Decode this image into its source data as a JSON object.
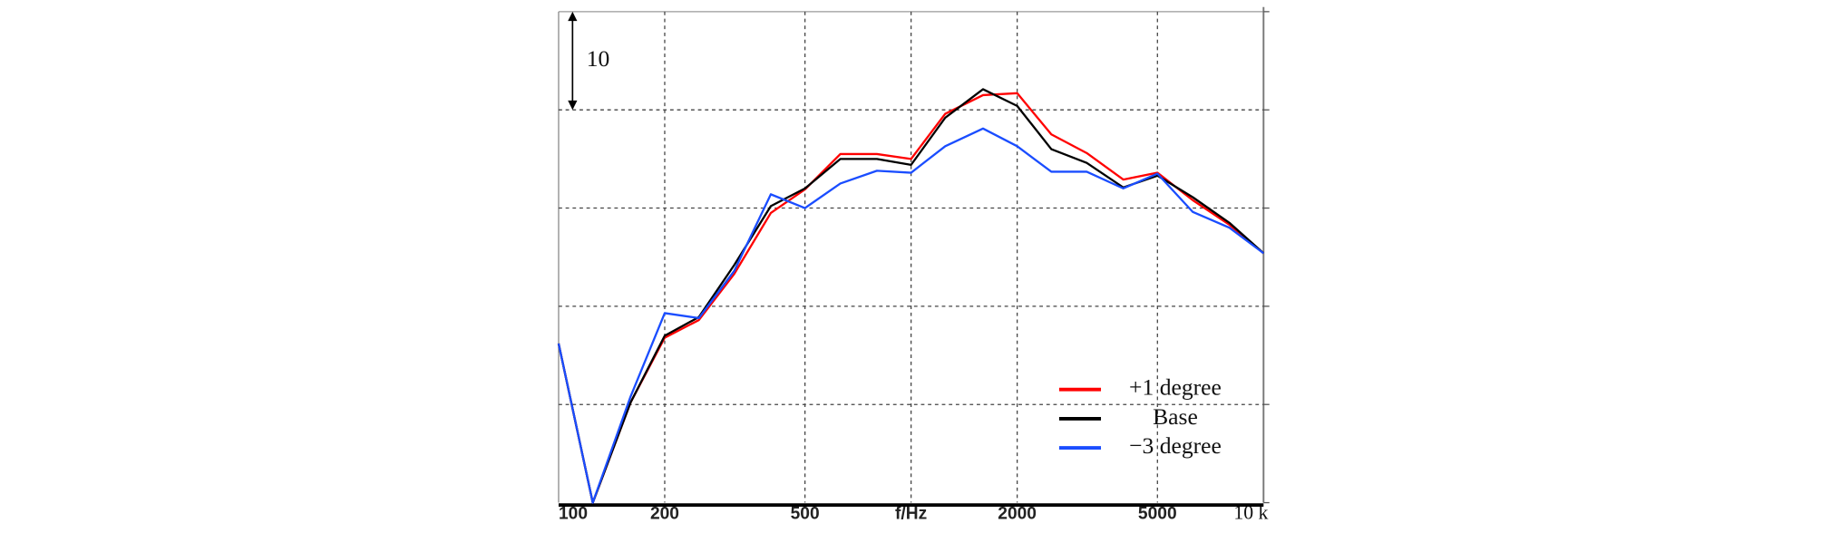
{
  "chart_data": {
    "type": "line",
    "xscale": "log",
    "grid": true,
    "legend": "lower right",
    "x": [
      100,
      125,
      160,
      200,
      250,
      315,
      400,
      500,
      630,
      800,
      1000,
      1250,
      1600,
      2000,
      2500,
      3150,
      4000,
      5000,
      6300,
      8000,
      10000
    ],
    "xlim": [
      100,
      10000
    ],
    "xticks": [
      100,
      200,
      500,
      {
        "value": 1000,
        "label": "f/Hz"
      },
      2000,
      5000,
      {
        "value": 10000,
        "label": "10 k"
      }
    ],
    "ylim": [
      0,
      50
    ],
    "yticks": [
      0,
      10,
      20,
      30,
      40,
      50
    ],
    "scale_bar": {
      "value": 10,
      "label": "10"
    },
    "series": [
      {
        "name": "+1 degree",
        "color": "#ff0000",
        "values": [
          16.2,
          0,
          10.2,
          16.8,
          18.6,
          23.3,
          29.5,
          31.9,
          35.5,
          35.5,
          35,
          39.6,
          41.5,
          41.7,
          37.5,
          35.6,
          32.9,
          33.6,
          30.8,
          28.3,
          25.4
        ]
      },
      {
        "name": "Base",
        "color": "#000000",
        "values": [
          16.2,
          0,
          10.2,
          17,
          18.9,
          24.2,
          30.2,
          32,
          35,
          35,
          34.4,
          39.2,
          42.1,
          40.4,
          36,
          34.6,
          32.1,
          33.3,
          31.1,
          28.5,
          25.4
        ]
      },
      {
        "name": "−3 degree",
        "color": "#1a4dff",
        "values": [
          16.2,
          0,
          10.8,
          19.3,
          18.8,
          23.6,
          31.4,
          30,
          32.5,
          33.8,
          33.6,
          36.3,
          38.1,
          36.3,
          33.7,
          33.7,
          32,
          33.5,
          29.6,
          28,
          25.4
        ]
      }
    ]
  }
}
